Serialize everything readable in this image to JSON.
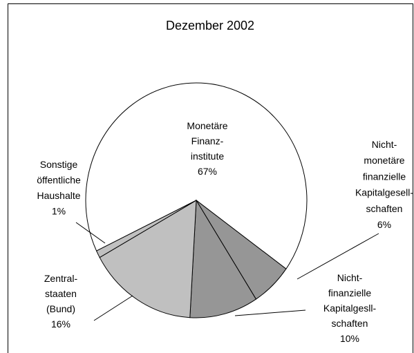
{
  "chart_data": {
    "type": "pie",
    "title": "Dezember 2002",
    "categories": [
      [
        "Monetäre",
        "Finanz-",
        "institute"
      ],
      [
        "Nicht-",
        "monetäre",
        "finanzielle",
        "Kapitalgesell-",
        "schaften"
      ],
      [
        "Nicht-",
        "finanzielle",
        "Kapitalgesll-",
        "schaften"
      ],
      [
        "Zentral-",
        "staaten",
        "(Bund)"
      ],
      [
        "Sonstige",
        "öffentliche",
        "Haushalte"
      ]
    ],
    "values": [
      67,
      6,
      10,
      16,
      1
    ],
    "value_labels": [
      "67%",
      "6%",
      "10%",
      "16%",
      "1%"
    ],
    "colors": [
      "#ffffff",
      "#969696",
      "#969696",
      "#c0c0c0",
      "#c0c0c0"
    ]
  }
}
